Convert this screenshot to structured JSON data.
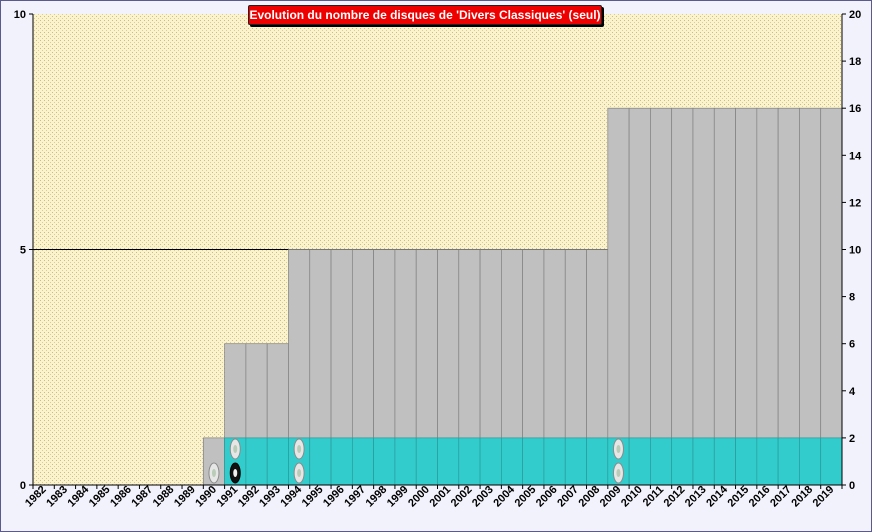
{
  "chart_data": {
    "type": "bar",
    "title": "Evolution  du  nombre de disques de 'Divers Classiques' (seul)",
    "categories": [
      "1982",
      "1983",
      "1984",
      "1985",
      "1986",
      "1987",
      "1988",
      "1989",
      "1990",
      "1991",
      "1992",
      "1993",
      "1994",
      "1995",
      "1996",
      "1997",
      "1998",
      "1999",
      "2000",
      "2001",
      "2002",
      "2003",
      "2004",
      "2005",
      "2006",
      "2007",
      "2008",
      "2009",
      "2010",
      "2011",
      "2012",
      "2013",
      "2014",
      "2015",
      "2016",
      "2017",
      "2018",
      "2019"
    ],
    "series": [
      {
        "axis": "right",
        "color": "#c0c0c0",
        "values": [
          0,
          0,
          0,
          0,
          0,
          0,
          0,
          0,
          2,
          6,
          6,
          6,
          10,
          10,
          10,
          10,
          10,
          10,
          10,
          10,
          10,
          10,
          10,
          10,
          10,
          10,
          10,
          16,
          16,
          16,
          16,
          16,
          16,
          16,
          16,
          16,
          16,
          16
        ]
      },
      {
        "axis": "left",
        "color": "#33cccc",
        "values": [
          0,
          0,
          0,
          0,
          0,
          0,
          0,
          0,
          0,
          1,
          1,
          1,
          1,
          1,
          1,
          1,
          1,
          1,
          1,
          1,
          1,
          1,
          1,
          1,
          1,
          1,
          1,
          1,
          1,
          1,
          1,
          1,
          1,
          1,
          1,
          1,
          1,
          1
        ]
      }
    ],
    "disc_markers": [
      {
        "year": "1990",
        "count": 1,
        "dark_count": 0
      },
      {
        "year": "1991",
        "count": 2,
        "dark_count": 1
      },
      {
        "year": "1994",
        "count": 2,
        "dark_count": 0
      },
      {
        "year": "2009",
        "count": 2,
        "dark_count": 0
      }
    ],
    "ylim_left": [
      0,
      10
    ],
    "yticks_left": [
      0,
      5,
      10
    ],
    "ylim_right": [
      0,
      20
    ],
    "yticks_right": [
      0,
      2,
      4,
      6,
      8,
      10,
      12,
      14,
      16,
      18,
      20
    ],
    "reference_line_left": 5,
    "plot_background": "#fbf3cc",
    "grid": false
  }
}
